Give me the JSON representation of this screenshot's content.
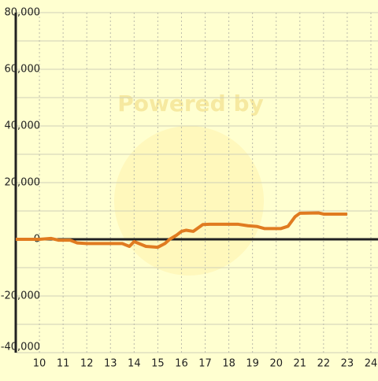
{
  "chart_data": {
    "type": "line",
    "watermark": "Powered by",
    "x": [
      9.0,
      10.0,
      10.5,
      10.8,
      11.3,
      11.6,
      12.0,
      13.5,
      13.8,
      14.0,
      14.5,
      15.0,
      15.3,
      15.5,
      15.8,
      16.0,
      16.2,
      16.5,
      16.9,
      17.2,
      18.4,
      18.8,
      19.2,
      19.5,
      20.2,
      20.5,
      20.8,
      21.0,
      21.8,
      22.0,
      23.0
    ],
    "series": [
      {
        "color": "#e07b20",
        "values": [
          0,
          0,
          300,
          -300,
          -300,
          -1300,
          -1500,
          -1500,
          -2500,
          -800,
          -2500,
          -2800,
          -1500,
          0,
          1500,
          2800,
          3200,
          2800,
          5200,
          5300,
          5300,
          4800,
          4500,
          3800,
          3800,
          4600,
          8000,
          9200,
          9300,
          8900,
          8900
        ]
      }
    ],
    "xlim": [
      9,
      24.3
    ],
    "xticks": [
      10,
      11,
      12,
      13,
      14,
      15,
      16,
      17,
      18,
      19,
      20,
      21,
      22,
      23,
      24
    ],
    "ylim": [
      -40000,
      80000
    ],
    "yticks": [
      {
        "value": -40000,
        "label": "-40,000"
      },
      {
        "value": -20000,
        "label": "-20,000"
      },
      0,
      {
        "value": 20000,
        "label": "20,000"
      },
      {
        "value": 40000,
        "label": "40,000"
      },
      {
        "value": 60000,
        "label": "60,000"
      },
      {
        "value": 80000,
        "label": "80,000"
      }
    ],
    "minor_yticks": [
      -30000,
      -10000,
      10000,
      30000,
      50000,
      70000
    ],
    "grid": true
  }
}
